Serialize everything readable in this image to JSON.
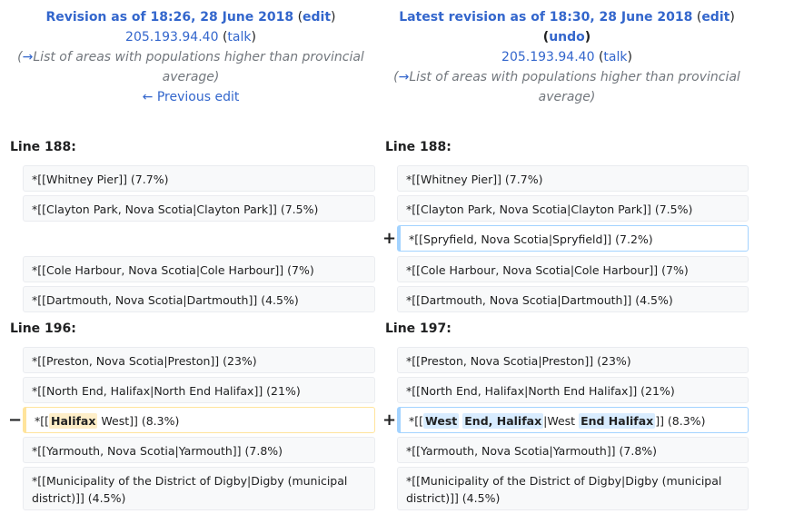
{
  "left_header": {
    "title": "Revision as of 18:26, 28 June 2018",
    "edit": "edit",
    "user": "205.193.94.40",
    "talk": "talk",
    "summary_arrow": "→",
    "summary_text": "List of areas with populations higher than provincial average",
    "prev_edit": "← Previous edit"
  },
  "right_header": {
    "title": "Latest revision as of 18:30, 28 June 2018",
    "edit": "edit",
    "undo": "undo",
    "user": "205.193.94.40",
    "talk": "talk",
    "summary_arrow": "→",
    "summary_text": "List of areas with populations higher than provincial average"
  },
  "block1": {
    "left_line": "Line 188:",
    "right_line": "Line 188:",
    "rows": [
      {
        "left": "*[[Whitney Pier]] (7.7%)",
        "right": "*[[Whitney Pier]] (7.7%)"
      },
      {
        "left": "*[[Clayton Park, Nova Scotia|Clayton Park]] (7.5%)",
        "right": "*[[Clayton Park, Nova Scotia|Clayton Park]] (7.5%)"
      },
      {
        "left": "",
        "right": "*[[Spryfield, Nova Scotia|Spryfield]] (7.2%)"
      },
      {
        "left": "*[[Cole Harbour, Nova Scotia|Cole Harbour]] (7%)",
        "right": "*[[Cole Harbour, Nova Scotia|Cole Harbour]] (7%)"
      },
      {
        "left": "*[[Dartmouth, Nova Scotia|Dartmouth]] (4.5%)",
        "right": "*[[Dartmouth, Nova Scotia|Dartmouth]] (4.5%)"
      }
    ]
  },
  "block2": {
    "left_line": "Line 196:",
    "right_line": "Line 197:",
    "rows": [
      {
        "left": "*[[Preston, Nova Scotia|Preston]] (23%)",
        "right": "*[[Preston, Nova Scotia|Preston]] (23%)"
      },
      {
        "left": "*[[North End, Halifax|North End Halifax]] (21%)",
        "right": "*[[North End, Halifax|North End Halifax]] (21%)"
      },
      {
        "left": "",
        "right": ""
      },
      {
        "left": "*[[Yarmouth, Nova Scotia|Yarmouth]] (7.8%)",
        "right": "*[[Yarmouth, Nova Scotia|Yarmouth]] (7.8%)"
      },
      {
        "left": "*[[Municipality of the District of Digby|Digby (municipal district)]] (4.5%)",
        "right": "*[[Municipality of the District of Digby|Digby (municipal district)]] (4.5%)"
      }
    ],
    "changed_left": {
      "pre": "*[[",
      "del": "Halifax",
      "post": " West]] (8.3%)"
    },
    "changed_right": {
      "pre": "*[[",
      "add1": "West",
      "mid1": " ",
      "add2": "End, Halifax",
      "mid2": "|West ",
      "add3": "End Halifax",
      "post": "]] (8.3%)"
    }
  },
  "markers": {
    "plus": "+",
    "minus": "−"
  }
}
